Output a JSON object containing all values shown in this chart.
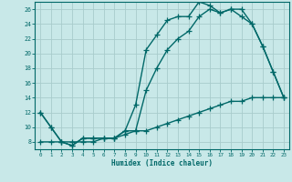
{
  "line1_x": [
    0,
    1,
    2,
    3,
    4,
    5,
    6,
    7,
    8,
    9,
    10,
    11,
    12,
    13,
    14,
    15,
    16,
    17,
    18,
    19,
    20,
    21,
    22,
    23
  ],
  "line1_y": [
    12,
    10,
    8,
    7.5,
    8.5,
    8.5,
    8.5,
    8.5,
    9.5,
    13,
    20.5,
    22.5,
    24.5,
    25,
    25,
    27,
    26.5,
    25.5,
    26,
    25,
    24,
    21,
    17.5,
    14
  ],
  "line2_x": [
    0,
    1,
    2,
    3,
    4,
    5,
    6,
    7,
    8,
    9,
    10,
    11,
    12,
    13,
    14,
    15,
    16,
    17,
    18,
    19,
    20,
    21,
    22,
    23
  ],
  "line2_y": [
    12,
    10,
    8,
    7.5,
    8.5,
    8.5,
    8.5,
    8.5,
    9.5,
    9.5,
    15,
    18,
    20.5,
    22,
    23,
    25,
    26,
    25.5,
    26,
    26,
    24,
    21,
    17.5,
    14
  ],
  "line3_x": [
    0,
    1,
    2,
    3,
    4,
    5,
    6,
    7,
    8,
    9,
    10,
    11,
    12,
    13,
    14,
    15,
    16,
    17,
    18,
    19,
    20,
    21,
    22,
    23
  ],
  "line3_y": [
    8,
    8,
    8,
    8,
    8,
    8,
    8.5,
    8.5,
    9,
    9.5,
    9.5,
    10,
    10.5,
    11,
    11.5,
    12,
    12.5,
    13,
    13.5,
    13.5,
    14,
    14,
    14,
    14
  ],
  "color": "#006868",
  "bg_color": "#c8e8e8",
  "grid_color": "#a8cccc",
  "xlabel": "Humidex (Indice chaleur)",
  "ylim": [
    7,
    27
  ],
  "xlim": [
    -0.5,
    23.5
  ],
  "yticks": [
    8,
    10,
    12,
    14,
    16,
    18,
    20,
    22,
    24,
    26
  ],
  "xticks": [
    0,
    1,
    2,
    3,
    4,
    5,
    6,
    7,
    8,
    9,
    10,
    11,
    12,
    13,
    14,
    15,
    16,
    17,
    18,
    19,
    20,
    21,
    22,
    23
  ],
  "marker": "+",
  "linewidth": 1.0,
  "markersize": 4
}
